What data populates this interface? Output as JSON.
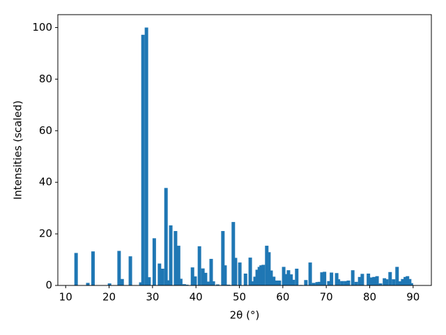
{
  "chart_data": {
    "type": "bar",
    "xlabel": "2θ (°)",
    "ylabel": "Intensities (scaled)",
    "color": "#1f77b4",
    "x": [
      12.4,
      15.1,
      16.3,
      20.1,
      22.3,
      23.0,
      24.9,
      27.3,
      27.8,
      28.6,
      29.2,
      30.4,
      31.6,
      32.3,
      33.1,
      33.6,
      34.2,
      35.3,
      36.0,
      36.5,
      37.3,
      37.9,
      39.2,
      39.8,
      40.8,
      41.6,
      42.2,
      42.7,
      43.5,
      44.0,
      45.0,
      46.2,
      46.7,
      47.5,
      48.6,
      49.1,
      50.1,
      51.4,
      52.5,
      53.1,
      53.6,
      54.1,
      54.6,
      55.0,
      55.5,
      56.3,
      56.8,
      57.3,
      57.9,
      58.6,
      59.2,
      60.2,
      60.8,
      61.3,
      61.9,
      62.4,
      63.2,
      64.2,
      65.3,
      66.3,
      67.1,
      67.9,
      68.4,
      69.0,
      69.6,
      70.6,
      71.2,
      72.4,
      72.8,
      73.6,
      74.4,
      75.1,
      76.1,
      76.9,
      77.7,
      78.3,
      79.7,
      80.4,
      81.0,
      81.7,
      82.5,
      83.4,
      83.9,
      84.7,
      85.5,
      86.3,
      87.0,
      87.6,
      88.2,
      88.7,
      89.2,
      89.6
    ],
    "values": [
      12.6,
      1.0,
      13.2,
      0.8,
      13.4,
      2.5,
      11.3,
      1.2,
      97.2,
      100,
      3.2,
      18.3,
      8.5,
      6.5,
      37.8,
      2.0,
      23.3,
      21.1,
      15.4,
      2.6,
      0.5,
      0.3,
      7.0,
      3.5,
      15.2,
      6.6,
      4.9,
      1.5,
      10.3,
      1.6,
      0.4,
      21.1,
      7.8,
      0.3,
      24.6,
      10.7,
      8.9,
      4.6,
      10.8,
      1.6,
      3.4,
      6.1,
      7.2,
      7.8,
      8.0,
      15.4,
      12.9,
      5.8,
      3.4,
      1.9,
      1.9,
      7.2,
      4.4,
      5.9,
      4.3,
      2.2,
      6.5,
      0.2,
      2.1,
      8.9,
      1.0,
      1.3,
      1.4,
      5.1,
      5.3,
      1.7,
      5.0,
      4.8,
      2.4,
      1.7,
      1.7,
      1.9,
      5.9,
      1.4,
      3.3,
      4.5,
      4.6,
      3.1,
      3.3,
      3.6,
      0.8,
      2.8,
      2.4,
      5.2,
      2.4,
      7.2,
      1.6,
      2.5,
      3.3,
      3.6,
      2.5,
      0.9
    ],
    "xlim": [
      8.2,
      94.2
    ],
    "xticks": [
      10,
      20,
      30,
      40,
      50,
      60,
      70,
      80,
      90
    ],
    "ylim": [
      0,
      105
    ],
    "yticks": [
      0,
      20,
      40,
      60,
      80,
      100
    ]
  }
}
